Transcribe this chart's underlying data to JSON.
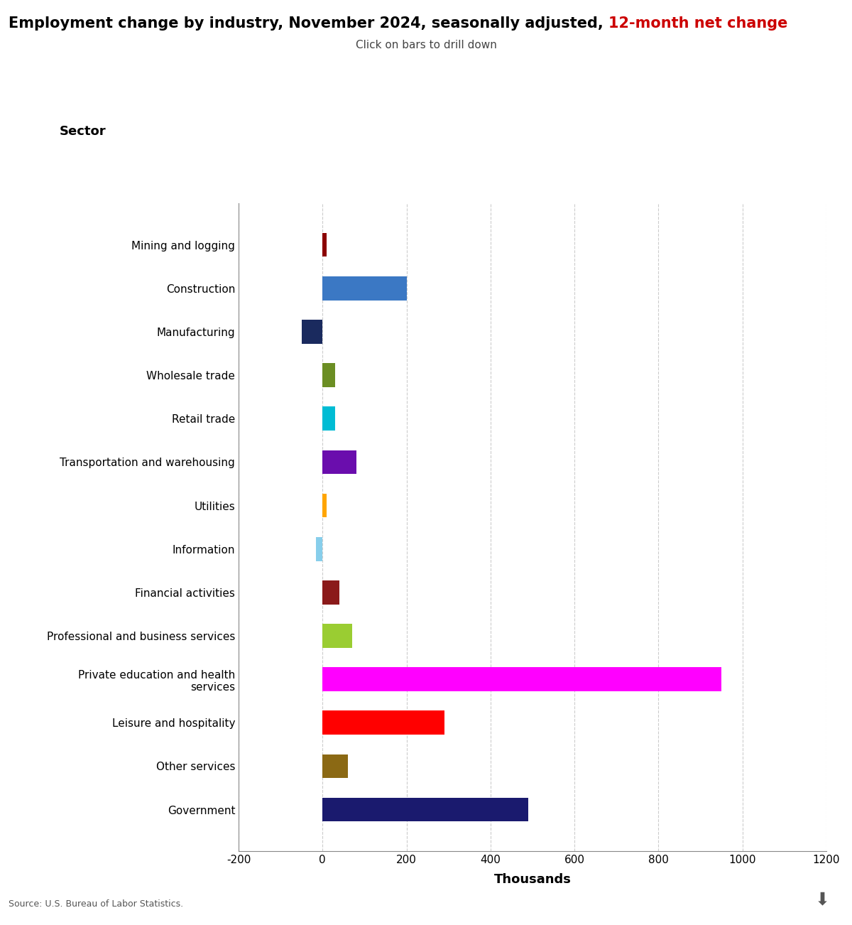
{
  "categories": [
    "Government",
    "Other services",
    "Leisure and hospitality",
    "Private education and health\nservices",
    "Professional and business services",
    "Financial activities",
    "Information",
    "Utilities",
    "Transportation and warehousing",
    "Retail trade",
    "Wholesale trade",
    "Manufacturing",
    "Construction",
    "Mining and logging"
  ],
  "values": [
    490,
    60,
    290,
    950,
    70,
    40,
    -15,
    10,
    80,
    30,
    30,
    -50,
    200,
    10
  ],
  "colors": [
    "#1a1a6e",
    "#8B6914",
    "#ff0000",
    "#ff00ff",
    "#9acd32",
    "#8b1a1a",
    "#87ceeb",
    "#ffa500",
    "#6a0dad",
    "#00bcd4",
    "#6b8e23",
    "#1a2a5e",
    "#3b78c4",
    "#8b0000"
  ],
  "title_black": "Employment change by industry, November 2024, seasonally adjusted, ",
  "title_red": "12-month net change",
  "subtitle": "Click on bars to drill down",
  "xlabel": "Thousands",
  "ylabel": "Sector",
  "xlim": [
    -200,
    1200
  ],
  "xticks": [
    -200,
    0,
    200,
    400,
    600,
    800,
    1000,
    1200
  ],
  "source": "Source: U.S. Bureau of Labor Statistics.",
  "bg_color": "#ffffff"
}
